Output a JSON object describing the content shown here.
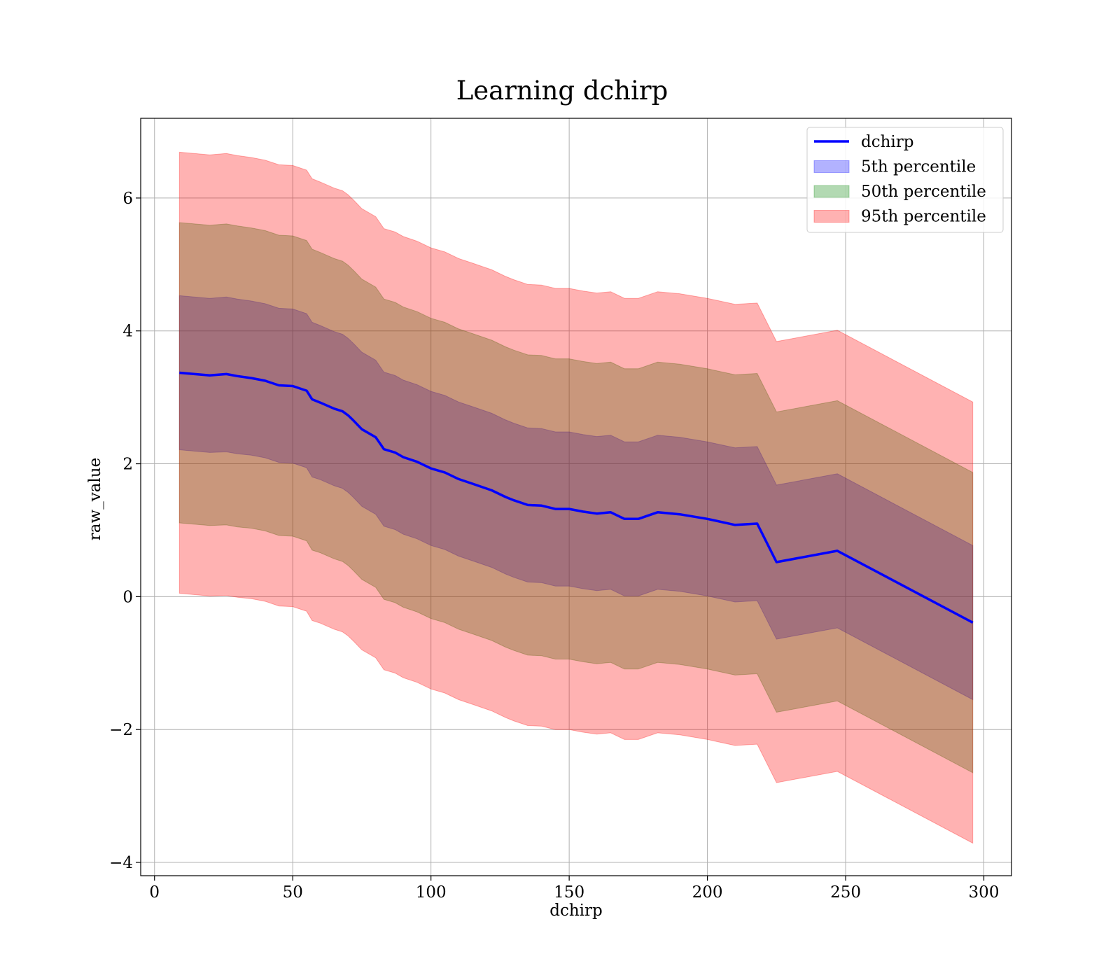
{
  "colors": {
    "line": "#0000ff",
    "band_5th": "#0000ff",
    "band_50th": "#008000",
    "band_95th": "#ff0000",
    "grid": "#b0b0b0",
    "axis": "#000000"
  },
  "legend": {
    "placement": "top-right",
    "items": [
      {
        "label": "dchirp",
        "kind": "line",
        "color": "#0000ff"
      },
      {
        "label": "5th percentile",
        "kind": "patch",
        "color": "#0000ff"
      },
      {
        "label": "50th percentile",
        "kind": "patch",
        "color": "#008000"
      },
      {
        "label": "95th percentile",
        "kind": "patch",
        "color": "#ff0000"
      }
    ]
  },
  "chart_data": {
    "type": "area",
    "title": "Learning dchirp",
    "xlabel": "dchirp",
    "ylabel": "raw_value",
    "xlim": [
      -5,
      310
    ],
    "ylim": [
      -4.2,
      7.2
    ],
    "xticks": [
      0,
      50,
      100,
      150,
      200,
      250,
      300
    ],
    "xtick_labels": [
      "0",
      "50",
      "100",
      "150",
      "200",
      "250",
      "300"
    ],
    "yticks": [
      -4,
      -2,
      0,
      2,
      4,
      6
    ],
    "ytick_labels": [
      "−4",
      "−2",
      "0",
      "2",
      "4",
      "6"
    ],
    "grid": true,
    "x": [
      9,
      20,
      26,
      30,
      35,
      40,
      45,
      50,
      55,
      57,
      60,
      65,
      68,
      70,
      72,
      75,
      80,
      83,
      87,
      90,
      95,
      100,
      105,
      110,
      115,
      122,
      127,
      130,
      135,
      140,
      145,
      150,
      155,
      160,
      165,
      170,
      175,
      182,
      190,
      200,
      210,
      218,
      225,
      247,
      296
    ],
    "series": [
      {
        "name": "dchirp",
        "kind": "line",
        "values": [
          3.37,
          3.33,
          3.35,
          3.32,
          3.29,
          3.25,
          3.18,
          3.17,
          3.1,
          2.97,
          2.92,
          2.83,
          2.79,
          2.73,
          2.65,
          2.52,
          2.4,
          2.22,
          2.17,
          2.1,
          2.03,
          1.93,
          1.87,
          1.77,
          1.7,
          1.6,
          1.5,
          1.45,
          1.38,
          1.37,
          1.32,
          1.32,
          1.28,
          1.25,
          1.27,
          1.17,
          1.17,
          1.27,
          1.24,
          1.17,
          1.08,
          1.1,
          0.52,
          0.69,
          -0.39
        ]
      },
      {
        "name": "5th percentile",
        "kind": "band",
        "lower": [
          2.21,
          2.17,
          2.18,
          2.15,
          2.13,
          2.09,
          2.02,
          2.01,
          1.94,
          1.8,
          1.76,
          1.67,
          1.63,
          1.57,
          1.49,
          1.36,
          1.24,
          1.06,
          1.01,
          0.94,
          0.87,
          0.77,
          0.71,
          0.61,
          0.54,
          0.44,
          0.34,
          0.29,
          0.22,
          0.21,
          0.16,
          0.16,
          0.12,
          0.09,
          0.11,
          0.01,
          0.01,
          0.11,
          0.08,
          0.01,
          -0.08,
          -0.06,
          -0.64,
          -0.47,
          -1.55
        ],
        "upper": [
          4.53,
          4.49,
          4.51,
          4.48,
          4.45,
          4.41,
          4.34,
          4.33,
          4.26,
          4.13,
          4.08,
          3.99,
          3.95,
          3.89,
          3.81,
          3.68,
          3.56,
          3.38,
          3.33,
          3.26,
          3.19,
          3.09,
          3.03,
          2.93,
          2.86,
          2.76,
          2.66,
          2.61,
          2.54,
          2.53,
          2.48,
          2.48,
          2.44,
          2.41,
          2.43,
          2.33,
          2.33,
          2.43,
          2.4,
          2.33,
          2.24,
          2.26,
          1.68,
          1.85,
          0.77
        ]
      },
      {
        "name": "50th percentile",
        "kind": "band",
        "lower": [
          1.11,
          1.07,
          1.08,
          1.05,
          1.03,
          0.99,
          0.92,
          0.91,
          0.84,
          0.7,
          0.66,
          0.57,
          0.53,
          0.47,
          0.39,
          0.26,
          0.14,
          -0.04,
          -0.09,
          -0.16,
          -0.23,
          -0.33,
          -0.39,
          -0.49,
          -0.56,
          -0.66,
          -0.76,
          -0.81,
          -0.88,
          -0.89,
          -0.94,
          -0.94,
          -0.98,
          -1.01,
          -0.99,
          -1.09,
          -1.09,
          -0.99,
          -1.02,
          -1.09,
          -1.18,
          -1.16,
          -1.74,
          -1.57,
          -2.65
        ],
        "upper": [
          5.63,
          5.59,
          5.61,
          5.58,
          5.55,
          5.51,
          5.44,
          5.43,
          5.36,
          5.23,
          5.18,
          5.09,
          5.05,
          4.99,
          4.91,
          4.78,
          4.66,
          4.48,
          4.43,
          4.36,
          4.29,
          4.19,
          4.13,
          4.03,
          3.96,
          3.86,
          3.76,
          3.71,
          3.64,
          3.63,
          3.58,
          3.58,
          3.54,
          3.51,
          3.53,
          3.43,
          3.43,
          3.53,
          3.5,
          3.43,
          3.34,
          3.36,
          2.78,
          2.95,
          1.87
        ]
      },
      {
        "name": "95th percentile",
        "kind": "band",
        "lower": [
          0.05,
          0.01,
          0.02,
          -0.01,
          -0.03,
          -0.07,
          -0.14,
          -0.15,
          -0.22,
          -0.36,
          -0.4,
          -0.49,
          -0.53,
          -0.59,
          -0.67,
          -0.8,
          -0.92,
          -1.1,
          -1.15,
          -1.22,
          -1.29,
          -1.39,
          -1.45,
          -1.55,
          -1.62,
          -1.72,
          -1.82,
          -1.87,
          -1.94,
          -1.95,
          -2.0,
          -2.0,
          -2.04,
          -2.07,
          -2.05,
          -2.15,
          -2.15,
          -2.05,
          -2.08,
          -2.15,
          -2.24,
          -2.22,
          -2.8,
          -2.63,
          -3.71
        ],
        "upper": [
          6.69,
          6.65,
          6.67,
          6.64,
          6.61,
          6.57,
          6.5,
          6.49,
          6.42,
          6.29,
          6.24,
          6.15,
          6.11,
          6.05,
          5.97,
          5.84,
          5.72,
          5.54,
          5.49,
          5.42,
          5.35,
          5.25,
          5.19,
          5.09,
          5.02,
          4.92,
          4.82,
          4.77,
          4.7,
          4.69,
          4.64,
          4.64,
          4.6,
          4.57,
          4.59,
          4.49,
          4.49,
          4.59,
          4.56,
          4.49,
          4.4,
          4.42,
          3.84,
          4.01,
          2.93
        ]
      }
    ]
  }
}
